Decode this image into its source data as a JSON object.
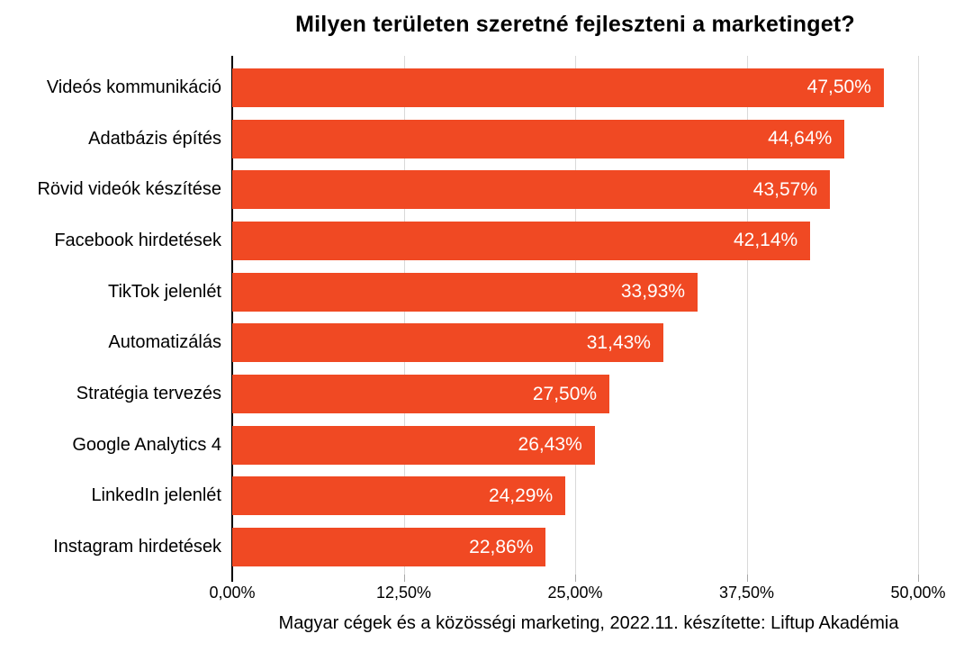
{
  "chart": {
    "title": "Milyen területen szeretné fejleszteni a marketinget?",
    "source_note": "Magyar cégek és a közösségi marketing, 2022.11. készítette:  Liftup Akadémia"
  },
  "chart_data": {
    "type": "bar",
    "orientation": "horizontal",
    "title": "Milyen területen szeretné fejleszteni a marketinget?",
    "categories": [
      "Videós kommunikáció",
      "Adatbázis építés",
      "Rövid videók készítése",
      "Facebook hirdetések",
      "TikTok jelenlét",
      "Automatizálás",
      "Stratégia tervezés",
      "Google Analytics 4",
      "LinkedIn jelenlét",
      "Instagram hirdetések"
    ],
    "values": [
      47.5,
      44.64,
      43.57,
      42.14,
      33.93,
      31.43,
      27.5,
      26.43,
      24.29,
      22.86
    ],
    "value_labels": [
      "47,50%",
      "44,64%",
      "43,57%",
      "42,14%",
      "33,93%",
      "31,43%",
      "27,50%",
      "26,43%",
      "24,29%",
      "22,86%"
    ],
    "xlim": [
      0,
      50
    ],
    "x_ticks": [
      0,
      12.5,
      25,
      37.5,
      50
    ],
    "x_tick_labels": [
      "0,00%",
      "12,50%",
      "25,00%",
      "37,50%",
      "50,00%"
    ],
    "xlabel": "",
    "ylabel": "",
    "legend": "none",
    "grid": "vertical-gridlines",
    "bar_color": "#F04923",
    "value_label_color": "#FFFFFF",
    "grid_color": "#D9D9D9",
    "tick_color": "#A8A8A8",
    "annotation": "Magyar cégek és a közösségi marketing, 2022.11. készítette:  Liftup Akadémia"
  }
}
